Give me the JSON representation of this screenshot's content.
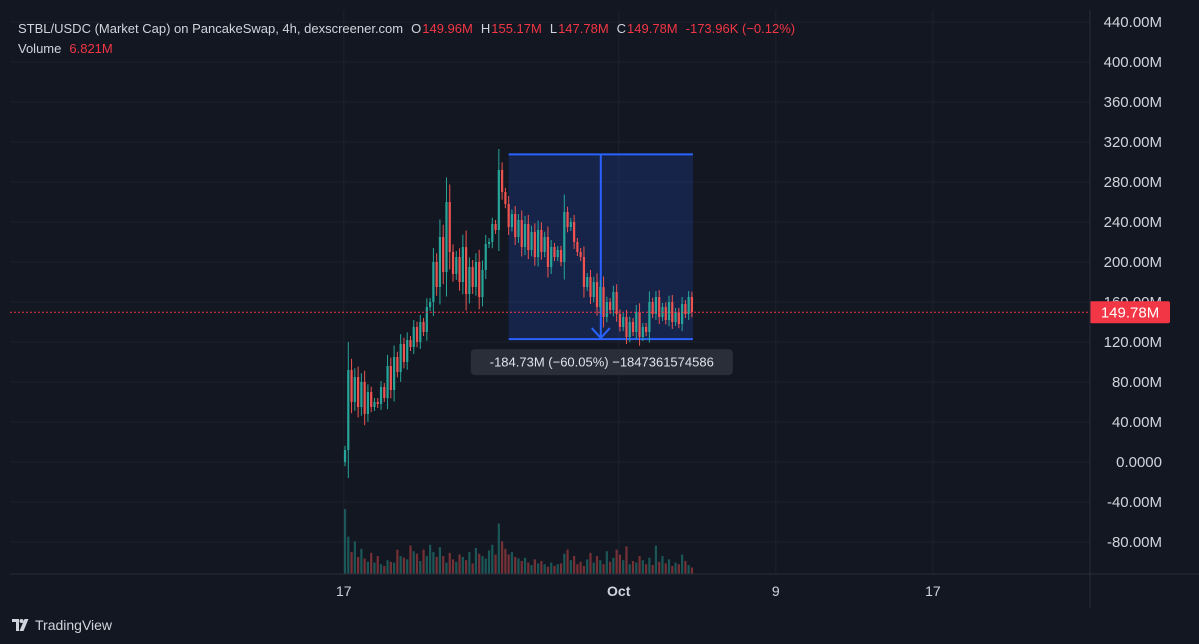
{
  "header": {
    "symbol_line": "STBL/USDC (Market Cap) on PancakeSwap, 4h, dexscreener.com",
    "ohlc": [
      {
        "label": "O",
        "value": "149.96M"
      },
      {
        "label": "H",
        "value": "155.17M"
      },
      {
        "label": "L",
        "value": "147.78M"
      },
      {
        "label": "C",
        "value": "149.78M"
      }
    ],
    "change": "-173.96K (−0.12%)",
    "volume_label": "Volume",
    "volume_value": "6.821M"
  },
  "footer": {
    "brand": "TradingView",
    "logo_icon": "tradingview-logo-icon"
  },
  "colors": {
    "background": "#131722",
    "grid": "#1e222d",
    "up": "#26a69a",
    "down": "#ef5350",
    "measure_box": "#2962ff",
    "price_tag": "#f23645",
    "axis_text": "#d1d4dc"
  },
  "measure": {
    "label": "-184.73M (−60.05%) −1847361574586",
    "from": 307.6,
    "to": 122.9
  },
  "chart_data": {
    "type": "candlestick",
    "title": "STBL/USDC (Market Cap) on PancakeSwap, 4h, dexscreener.com",
    "y_unit": "M",
    "ylim": [
      -112,
      452
    ],
    "y_ticks": [
      "440.00M",
      "400.00M",
      "360.00M",
      "320.00M",
      "280.00M",
      "240.00M",
      "200.00M",
      "160.00M",
      "120.00M",
      "80.00M",
      "40.00M",
      "0.0000",
      "-40.00M",
      "-80.00M"
    ],
    "y_tick_values": [
      440,
      400,
      360,
      320,
      280,
      240,
      200,
      160,
      120,
      80,
      40,
      0,
      -40,
      -80
    ],
    "x_ticks": [
      {
        "label": "17",
        "date": "2025-09-17",
        "bold": false
      },
      {
        "label": "Oct",
        "date": "2025-10-01",
        "bold": true
      },
      {
        "label": "9",
        "date": "2025-10-09",
        "bold": false
      },
      {
        "label": "17",
        "date": "2025-10-17",
        "bold": false
      }
    ],
    "x_range": [
      "2025-08-31",
      "2025-10-25"
    ],
    "first_candle": "2025-09-17T00:00",
    "interval_hours": 4,
    "last_price": 149.78,
    "last_price_label": "149.78M",
    "grid": true,
    "closes": [
      12,
      92,
      60,
      85,
      55,
      80,
      48,
      70,
      55,
      60,
      58,
      75,
      64,
      96,
      72,
      105,
      90,
      118,
      100,
      122,
      115,
      135,
      120,
      140,
      130,
      155,
      160,
      200,
      175,
      225,
      190,
      260,
      210,
      188,
      205,
      180,
      215,
      168,
      195,
      175,
      200,
      165,
      192,
      218,
      220,
      238,
      232,
      292,
      270,
      258,
      235,
      248,
      225,
      242,
      215,
      238,
      212,
      230,
      205,
      232,
      210,
      225,
      195,
      215,
      205,
      212,
      200,
      250,
      235,
      240,
      220,
      210,
      205,
      175,
      185,
      165,
      180,
      155,
      175,
      145,
      160,
      152,
      170,
      148,
      135,
      145,
      125,
      140,
      130,
      150,
      125,
      135,
      130,
      160,
      148,
      165,
      145,
      155,
      142,
      160,
      140,
      150,
      138,
      158,
      148,
      165,
      150
    ],
    "volume": [
      80,
      46,
      27,
      40,
      21,
      31,
      19,
      15,
      26,
      14,
      22,
      12,
      10,
      17,
      15,
      14,
      30,
      22,
      20,
      18,
      35,
      28,
      25,
      16,
      30,
      22,
      36,
      27,
      21,
      33,
      22,
      14,
      26,
      18,
      15,
      24,
      21,
      17,
      27,
      13,
      32,
      25,
      22,
      19,
      29,
      36,
      24,
      62,
      40,
      31,
      24,
      27,
      21,
      19,
      16,
      20,
      14,
      11,
      18,
      13,
      16,
      12,
      9,
      14,
      10,
      12,
      13,
      25,
      30,
      17,
      22,
      12,
      15,
      10,
      18,
      26,
      14,
      22,
      17,
      12,
      28,
      15,
      20,
      30,
      24,
      17,
      34,
      12,
      16,
      14,
      22,
      17,
      12,
      20,
      11,
      35,
      15,
      22,
      13,
      18,
      10,
      14,
      12,
      24,
      16,
      11,
      8
    ]
  }
}
